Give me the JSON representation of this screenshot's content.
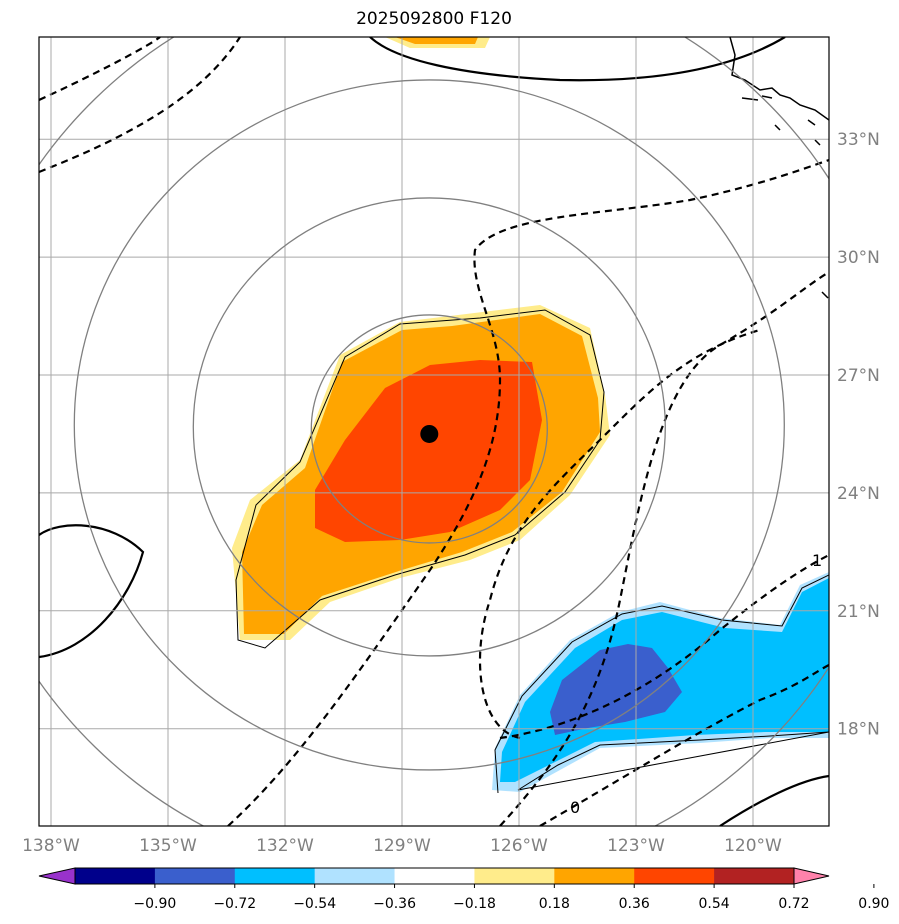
{
  "title": "2025092800 F120",
  "map": {
    "lat_labels": [
      {
        "text": "33°N",
        "lat": 33
      },
      {
        "text": "30°N",
        "lat": 30
      },
      {
        "text": "27°N",
        "lat": 27
      },
      {
        "text": "24°N",
        "lat": 24
      },
      {
        "text": "21°N",
        "lat": 21
      },
      {
        "text": "18°N",
        "lat": 18
      }
    ],
    "lon_labels": [
      {
        "text": "138°W",
        "lon": -138
      },
      {
        "text": "135°W",
        "lon": -135
      },
      {
        "text": "132°W",
        "lon": -132
      },
      {
        "text": "129°W",
        "lon": -129
      },
      {
        "text": "126°W",
        "lon": -126
      },
      {
        "text": "123°W",
        "lon": -123
      },
      {
        "text": "120°W",
        "lon": -120
      }
    ],
    "center_marker": {
      "lat": 25.5,
      "lon": -128.3
    },
    "contour_labels": [
      "0",
      "1"
    ],
    "line_color": "#808080",
    "contour_color": "#000000"
  },
  "colorbar": {
    "colors": [
      "#9932cc",
      "#00008b",
      "#3a5fcd",
      "#00bfff",
      "#b0e2ff",
      "#ffffff",
      "#ffec8b",
      "#ffa500",
      "#ff4500",
      "#b22222",
      "#ff82ab"
    ],
    "tick_labels": [
      "−0.90",
      "−0.72",
      "−0.54",
      "−0.36",
      "−0.18",
      "0.18",
      "0.36",
      "0.54",
      "0.72",
      "0.90"
    ]
  }
}
